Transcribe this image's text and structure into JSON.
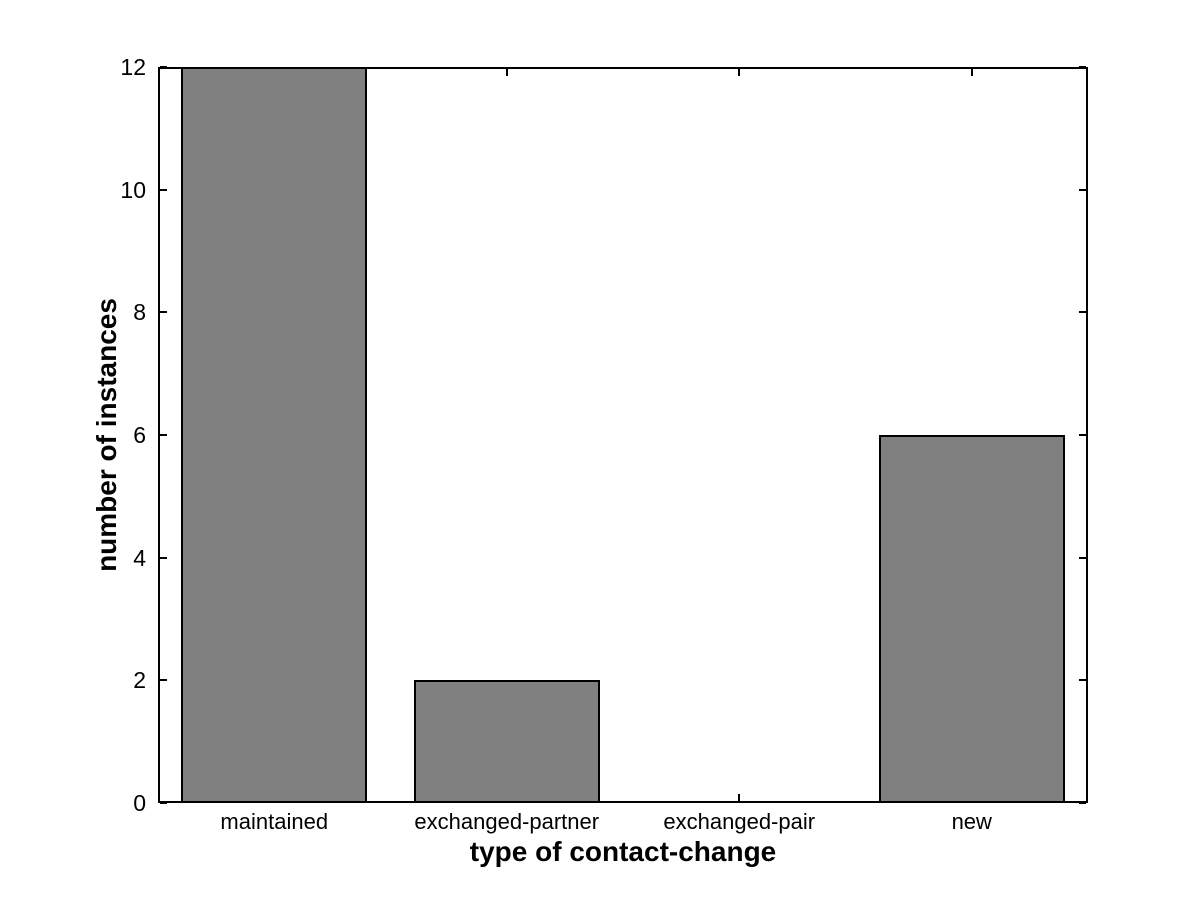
{
  "chart_data": {
    "type": "bar",
    "title": "",
    "categories": [
      "maintained",
      "exchanged-partner",
      "exchanged-pair",
      "new"
    ],
    "values": [
      12,
      2,
      0,
      6
    ],
    "xlabel": "type of contact-change",
    "ylabel": "number of instances",
    "ylim": [
      0,
      12
    ],
    "yticks": [
      0,
      2,
      4,
      6,
      8,
      10,
      12
    ],
    "bar_width_fraction": 0.8,
    "bar_color": "#808080",
    "bar_edge_color": "#000000",
    "axis_color": "#000000",
    "background_color": "#ffffff",
    "grid": false,
    "legend": null,
    "tick_style": "inward ticks mirrored on all four sides of boxed axes"
  }
}
